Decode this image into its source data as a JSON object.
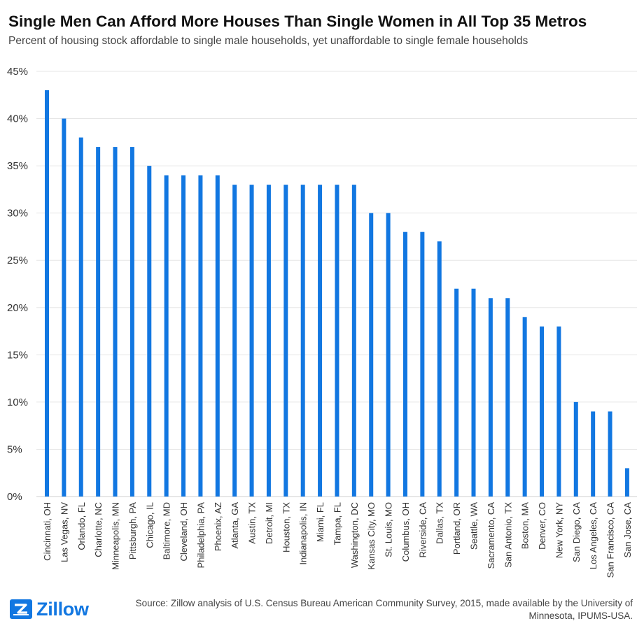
{
  "chart_data": {
    "type": "bar",
    "title": "Single Men Can Afford More Houses Than Single Women in All Top 35 Metros",
    "subtitle": "Percent of housing stock affordable to single male households, yet unaffordable to single female households",
    "xlabel": "",
    "ylabel": "",
    "ylim": [
      0,
      45
    ],
    "yticks": [
      0,
      5,
      10,
      15,
      20,
      25,
      30,
      35,
      40,
      45
    ],
    "ytick_labels": [
      "0%",
      "5%",
      "10%",
      "15%",
      "20%",
      "25%",
      "30%",
      "35%",
      "40%",
      "45%"
    ],
    "grid": true,
    "bar_color": "#1277e1",
    "categories": [
      "Cincinnati, OH",
      "Las Vegas, NV",
      "Orlando, FL",
      "Charlotte, NC",
      "Minneapolis, MN",
      "Pittsburgh, PA",
      "Chicago, IL",
      "Baltimore, MD",
      "Cleveland, OH",
      "Philadelphia, PA",
      "Phoenix, AZ",
      "Atlanta, GA",
      "Austin, TX",
      "Detroit, MI",
      "Houston, TX",
      "Indianapolis, IN",
      "Miami, FL",
      "Tampa, FL",
      "Washington, DC",
      "Kansas City, MO",
      "St. Louis, MO",
      "Columbus, OH",
      "Riverside, CA",
      "Dallas, TX",
      "Portland, OR",
      "Seattle, WA",
      "Sacramento, CA",
      "San Antonio, TX",
      "Boston, MA",
      "Denver, CO",
      "New York, NY",
      "San Diego, CA",
      "Los Angeles, CA",
      "San Francisco, CA",
      "San Jose, CA"
    ],
    "values": [
      43,
      40,
      38,
      37,
      37,
      37,
      35,
      34,
      34,
      34,
      34,
      33,
      33,
      33,
      33,
      33,
      33,
      33,
      33,
      30,
      30,
      28,
      28,
      27,
      22,
      22,
      21,
      21,
      19,
      18,
      18,
      10,
      9,
      9,
      3
    ]
  },
  "footer": {
    "logo_text": "Zillow",
    "source": "Source: Zillow analysis of U.S. Census Bureau American Community Survey, 2015, made available by the University of Minnesota, IPUMS-USA."
  }
}
